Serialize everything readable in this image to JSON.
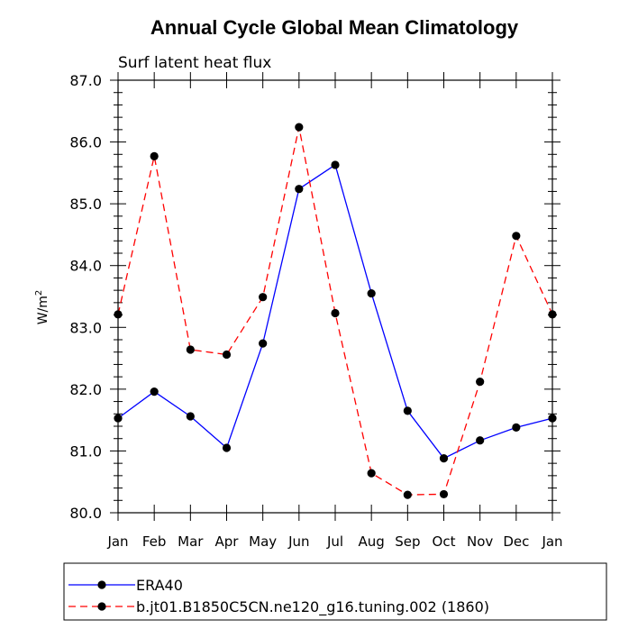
{
  "chart_data": {
    "type": "line",
    "title": "Annual Cycle Global Mean Climatology",
    "subtitle": "Surf latent heat flux",
    "ylabel": "W/m",
    "ylabel_sup": "2",
    "xlabel": "",
    "categories": [
      "Jan",
      "Feb",
      "Mar",
      "Apr",
      "May",
      "Jun",
      "Jul",
      "Aug",
      "Sep",
      "Oct",
      "Nov",
      "Dec",
      "Jan"
    ],
    "ylim": [
      80.0,
      87.0
    ],
    "yticks": [
      "80.0",
      "81.0",
      "82.0",
      "83.0",
      "84.0",
      "85.0",
      "86.0",
      "87.0"
    ],
    "grid": false,
    "series": [
      {
        "name": "ERA40",
        "color": "#0000ff",
        "dash": "solid",
        "values": [
          81.53,
          81.96,
          81.56,
          81.05,
          82.74,
          85.24,
          85.63,
          83.55,
          81.65,
          80.88,
          81.17,
          81.38,
          81.53
        ]
      },
      {
        "name": "b.jt01.B1850C5CN.ne120_g16.tuning.002 (1860)",
        "color": "#ff0000",
        "dash": "dashed",
        "values": [
          83.21,
          85.77,
          82.64,
          82.56,
          83.49,
          86.24,
          83.23,
          80.64,
          80.29,
          80.3,
          82.12,
          84.48,
          83.21
        ]
      }
    ],
    "legend_position": "bottom"
  }
}
